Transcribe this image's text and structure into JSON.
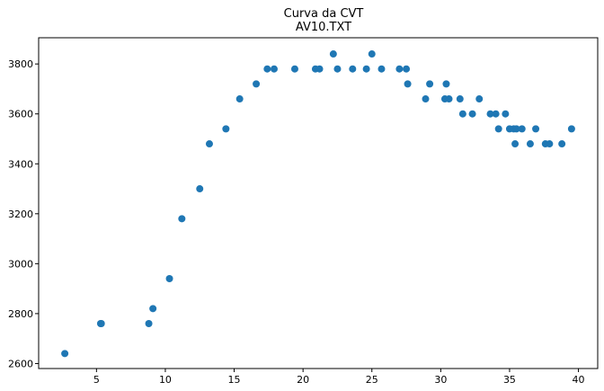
{
  "chart_data": {
    "type": "scatter",
    "title": "Curva da CVT",
    "subtitle": "AV10.TXT",
    "xlabel": "",
    "ylabel": "",
    "xlim": [
      0.8,
      41.4
    ],
    "ylim": [
      2580,
      3905
    ],
    "xticks": [
      5,
      10,
      15,
      20,
      25,
      30,
      35,
      40
    ],
    "yticks": [
      2600,
      2800,
      3000,
      3200,
      3400,
      3600,
      3800
    ],
    "grid": false,
    "color": "#1f77b4",
    "points": [
      [
        2.7,
        2640
      ],
      [
        5.3,
        2760
      ],
      [
        5.35,
        2760
      ],
      [
        8.8,
        2760
      ],
      [
        9.1,
        2820
      ],
      [
        10.3,
        2940
      ],
      [
        11.2,
        3180
      ],
      [
        12.5,
        3300
      ],
      [
        13.2,
        3480
      ],
      [
        14.4,
        3540
      ],
      [
        15.4,
        3660
      ],
      [
        16.6,
        3720
      ],
      [
        17.4,
        3780
      ],
      [
        17.9,
        3780
      ],
      [
        19.4,
        3780
      ],
      [
        20.9,
        3780
      ],
      [
        21.2,
        3780
      ],
      [
        22.2,
        3840
      ],
      [
        22.5,
        3780
      ],
      [
        23.6,
        3780
      ],
      [
        24.6,
        3780
      ],
      [
        25.0,
        3840
      ],
      [
        25.7,
        3780
      ],
      [
        27.0,
        3780
      ],
      [
        27.5,
        3780
      ],
      [
        27.6,
        3720
      ],
      [
        28.9,
        3660
      ],
      [
        29.2,
        3720
      ],
      [
        30.3,
        3660
      ],
      [
        30.4,
        3720
      ],
      [
        30.6,
        3660
      ],
      [
        31.4,
        3660
      ],
      [
        31.6,
        3600
      ],
      [
        32.3,
        3600
      ],
      [
        32.8,
        3660
      ],
      [
        33.6,
        3600
      ],
      [
        34.0,
        3600
      ],
      [
        34.2,
        3540
      ],
      [
        34.7,
        3600
      ],
      [
        35.0,
        3540
      ],
      [
        35.3,
        3540
      ],
      [
        35.4,
        3480
      ],
      [
        35.5,
        3540
      ],
      [
        35.9,
        3540
      ],
      [
        36.5,
        3480
      ],
      [
        36.9,
        3540
      ],
      [
        37.6,
        3480
      ],
      [
        37.9,
        3480
      ],
      [
        38.8,
        3480
      ],
      [
        39.5,
        3540
      ]
    ]
  }
}
